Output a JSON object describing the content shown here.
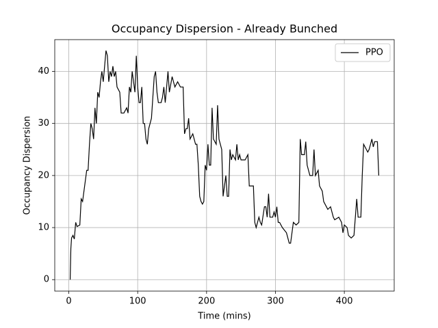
{
  "chart_data": {
    "type": "line",
    "title": "Occupancy Dispersion - Already Bunched",
    "x_label": "Time (mins)",
    "y_label": "Occupancy Dispersion",
    "x": [
      2,
      3,
      4,
      6,
      8,
      10,
      12,
      16,
      18,
      20,
      24,
      26,
      28,
      30,
      32,
      34,
      36,
      38,
      40,
      42,
      44,
      46,
      48,
      50,
      52,
      54,
      56,
      58,
      60,
      62,
      64,
      66,
      68,
      70,
      74,
      76,
      80,
      84,
      86,
      88,
      90,
      92,
      94,
      96,
      98,
      100,
      102,
      104,
      106,
      108,
      110,
      112,
      114,
      116,
      120,
      124,
      126,
      128,
      130,
      134,
      136,
      138,
      140,
      144,
      146,
      150,
      154,
      158,
      162,
      166,
      168,
      170,
      172,
      174,
      176,
      180,
      184,
      186,
      188,
      190,
      192,
      194,
      196,
      198,
      200,
      202,
      204,
      206,
      208,
      210,
      214,
      216,
      218,
      222,
      224,
      226,
      228,
      230,
      232,
      234,
      236,
      238,
      242,
      244,
      246,
      248,
      250,
      256,
      260,
      262,
      266,
      268,
      270,
      272,
      274,
      276,
      278,
      280,
      284,
      286,
      288,
      290,
      292,
      296,
      298,
      300,
      302,
      304,
      306,
      310,
      316,
      320,
      322,
      326,
      330,
      334,
      336,
      338,
      342,
      344,
      346,
      350,
      354,
      356,
      358,
      362,
      364,
      368,
      370,
      374,
      376,
      380,
      384,
      386,
      392,
      396,
      398,
      400,
      404,
      406,
      410,
      414,
      416,
      418,
      420,
      424,
      426,
      428,
      432,
      434,
      436,
      438,
      440,
      442,
      444,
      446,
      448,
      450
    ],
    "series": [
      {
        "name": "PPO",
        "color": "#000000",
        "values": [
          0,
          6,
          8,
          8.5,
          7.8,
          11,
          10.2,
          10.5,
          15.5,
          15,
          19,
          21,
          21,
          26,
          30,
          29,
          27,
          33,
          30,
          36,
          35,
          38,
          40,
          38,
          41,
          44,
          43,
          38,
          40,
          39,
          41,
          39,
          40,
          37,
          36,
          32,
          32,
          33,
          32,
          37,
          36,
          40,
          38,
          36,
          43,
          37,
          34,
          34,
          37,
          30,
          30,
          27,
          26,
          29,
          31,
          39,
          40,
          36,
          34,
          34,
          35,
          37,
          34,
          40,
          36,
          39,
          37,
          38,
          37,
          37,
          28,
          29,
          29,
          31,
          27,
          28,
          26,
          26,
          22,
          16,
          15,
          14.5,
          15,
          22,
          21,
          26,
          22,
          22,
          33,
          27,
          26,
          33.5,
          27,
          25,
          16,
          18,
          20,
          16,
          16,
          25,
          23,
          24,
          23,
          26,
          23,
          24,
          23,
          23,
          24,
          18,
          18,
          18,
          11,
          10,
          11,
          12,
          11,
          10.5,
          14,
          14,
          12,
          16.5,
          12,
          12,
          13,
          12,
          14,
          11,
          11,
          10,
          9,
          7,
          7,
          11,
          10.5,
          11,
          27,
          24,
          24,
          26.5,
          22,
          20,
          20,
          25,
          20,
          21,
          18,
          17,
          15,
          14,
          13.5,
          14,
          12,
          11.5,
          12,
          11,
          9,
          10.5,
          10,
          8.5,
          8,
          8.5,
          12,
          15.5,
          12,
          12,
          20,
          26,
          25,
          24.5,
          25,
          26,
          27,
          25.5,
          26.5,
          26.5,
          26.5,
          20
        ]
      }
    ],
    "xlim": [
      -20.4,
      472.4
    ],
    "xticks": [
      0,
      100,
      200,
      300,
      400
    ],
    "ylim": [
      -2.2,
      46.1
    ],
    "yticks": [
      0,
      10,
      20,
      30,
      40
    ],
    "grid": true,
    "legend": "upper-right"
  }
}
